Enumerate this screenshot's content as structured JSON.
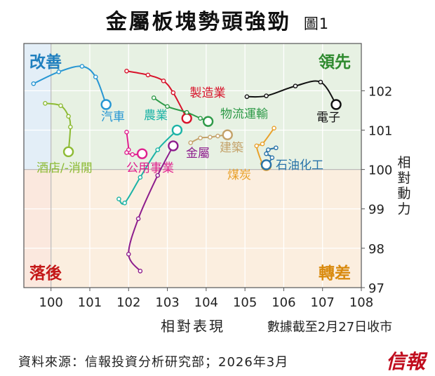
{
  "title": "金屬板塊勢頭強勁",
  "figure_label": "圖1",
  "source": "資料來源：信報投資分析研究部；2026年3月",
  "logo_text": "信報",
  "colors": {
    "improving_bg": "#e3eef7",
    "leading_bg": "#e7f1e3",
    "lagging_bg": "#fbe8de",
    "weakening_bg": "#fbeedf",
    "improving_label": "#1f7fbf",
    "leading_label": "#2f8a2f",
    "lagging_label": "#c41717",
    "weakening_label": "#d98a0e"
  },
  "chart_data": {
    "type": "scatter",
    "xlabel": "相對表現",
    "ylabel": "相對動力",
    "note": "數據截至2月27日收市",
    "xlim": [
      99.3,
      108
    ],
    "ylim": [
      97,
      103.2
    ],
    "xticks": [
      100,
      101,
      102,
      103,
      104,
      105,
      106,
      107,
      108
    ],
    "yticks": [
      97,
      98,
      99,
      100,
      101,
      102
    ],
    "quadrant_labels": {
      "improving": "改善",
      "leading": "領先",
      "lagging": "落後",
      "weakening": "轉差"
    },
    "series": [
      {
        "name": "汽車",
        "color": "#2796d3",
        "points": [
          [
            99.55,
            102.18
          ],
          [
            100.2,
            102.48
          ],
          [
            100.8,
            102.62
          ],
          [
            101.15,
            102.35
          ],
          [
            101.42,
            101.65
          ]
        ]
      },
      {
        "name": "電子",
        "color": "#111111",
        "points": [
          [
            105.05,
            101.85
          ],
          [
            105.55,
            101.87
          ],
          [
            106.3,
            102.12
          ],
          [
            106.95,
            102.22
          ],
          [
            107.35,
            101.65
          ]
        ]
      },
      {
        "name": "製造業",
        "color": "#d8122a",
        "points": [
          [
            101.95,
            102.5
          ],
          [
            102.5,
            102.4
          ],
          [
            102.9,
            102.25
          ],
          [
            103.15,
            101.95
          ],
          [
            103.5,
            101.3
          ]
        ]
      },
      {
        "name": "物流運輸",
        "color": "#2e9a48",
        "points": [
          [
            102.65,
            101.82
          ],
          [
            103.0,
            101.6
          ],
          [
            103.5,
            101.45
          ],
          [
            103.85,
            101.3
          ],
          [
            104.05,
            101.22
          ]
        ]
      },
      {
        "name": "農業",
        "color": "#1cb3a6",
        "points": [
          [
            101.75,
            99.25
          ],
          [
            101.9,
            99.15
          ],
          [
            102.3,
            99.8
          ],
          [
            102.75,
            100.5
          ],
          [
            103.25,
            101.0
          ]
        ]
      },
      {
        "name": "酒店/-消閒",
        "color": "#8dbb34",
        "points": [
          [
            99.85,
            101.68
          ],
          [
            100.25,
            101.62
          ],
          [
            100.45,
            101.35
          ],
          [
            100.5,
            101.08
          ],
          [
            100.45,
            100.45
          ]
        ]
      },
      {
        "name": "建築",
        "color": "#c4a26a",
        "points": [
          [
            103.6,
            100.68
          ],
          [
            103.85,
            100.8
          ],
          [
            104.1,
            100.82
          ],
          [
            104.3,
            100.85
          ],
          [
            104.55,
            100.88
          ]
        ]
      },
      {
        "name": "公用事業",
        "color": "#e0208e",
        "points": [
          [
            101.95,
            100.95
          ],
          [
            102.0,
            100.5
          ],
          [
            101.95,
            100.43
          ],
          [
            102.1,
            100.38
          ],
          [
            102.35,
            100.4
          ]
        ]
      },
      {
        "name": "金屬",
        "color": "#8d1d8d",
        "points": [
          [
            102.3,
            97.42
          ],
          [
            102.0,
            97.85
          ],
          [
            102.25,
            98.75
          ],
          [
            102.75,
            99.85
          ],
          [
            103.15,
            100.6
          ]
        ]
      },
      {
        "name": "煤炭",
        "color": "#e9a12b",
        "points": [
          [
            105.75,
            101.05
          ],
          [
            105.45,
            100.65
          ],
          [
            105.3,
            100.6
          ],
          [
            105.45,
            100.15
          ],
          [
            105.55,
            100.1
          ]
        ]
      },
      {
        "name": "石油化工",
        "color": "#2872a8",
        "points": [
          [
            105.8,
            100.55
          ],
          [
            105.6,
            100.5
          ],
          [
            105.55,
            100.4
          ],
          [
            105.7,
            100.3
          ],
          [
            105.55,
            100.12
          ]
        ]
      }
    ]
  }
}
